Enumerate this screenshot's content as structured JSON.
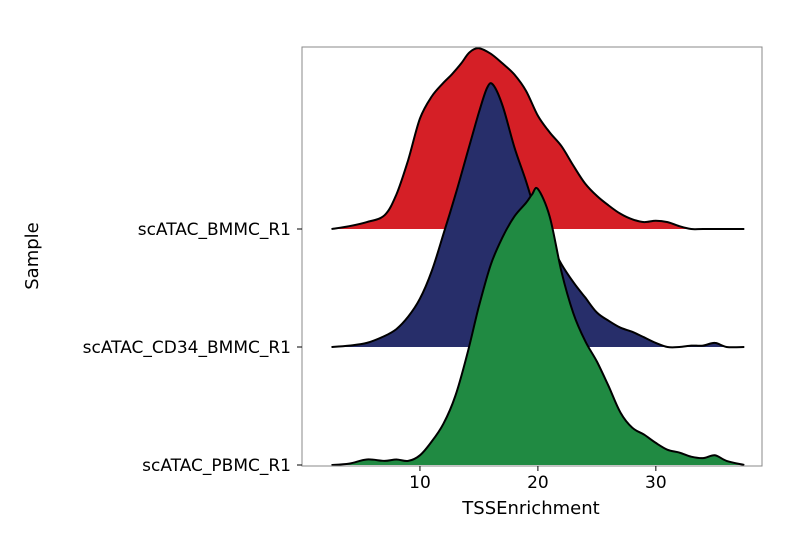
{
  "chart_data": {
    "type": "ridgeline",
    "title": "",
    "xlabel": "TSSEnrichment",
    "ylabel": "Sample",
    "xlim": [
      0,
      39
    ],
    "x_ticks": [
      10,
      20,
      30
    ],
    "grid": false,
    "legend": "none",
    "series": [
      {
        "name": "scATAC_BMMC_R1",
        "color": "#D51F26",
        "density": [
          [
            2.5,
            0.0
          ],
          [
            4,
            0.02
          ],
          [
            5.5,
            0.05
          ],
          [
            7,
            0.1
          ],
          [
            8,
            0.25
          ],
          [
            9,
            0.5
          ],
          [
            10,
            0.8
          ],
          [
            11,
            0.96
          ],
          [
            12,
            1.06
          ],
          [
            12.7,
            1.12
          ],
          [
            13.5,
            1.2
          ],
          [
            14.2,
            1.28
          ],
          [
            15,
            1.31
          ],
          [
            16,
            1.27
          ],
          [
            17,
            1.2
          ],
          [
            18,
            1.12
          ],
          [
            19,
            1.0
          ],
          [
            20,
            0.82
          ],
          [
            21,
            0.7
          ],
          [
            22,
            0.6
          ],
          [
            23,
            0.46
          ],
          [
            24,
            0.33
          ],
          [
            25,
            0.24
          ],
          [
            26,
            0.17
          ],
          [
            27,
            0.11
          ],
          [
            28,
            0.07
          ],
          [
            29,
            0.05
          ],
          [
            30,
            0.06
          ],
          [
            31,
            0.05
          ],
          [
            32,
            0.02
          ],
          [
            33,
            0.0
          ],
          [
            34,
            0.0
          ],
          [
            36,
            0.0
          ],
          [
            37.5,
            0.0
          ]
        ]
      },
      {
        "name": "scATAC_CD34_BMMC_R1",
        "color": "#272E6A",
        "density": [
          [
            2.5,
            0.0
          ],
          [
            4,
            0.01
          ],
          [
            5.5,
            0.03
          ],
          [
            7,
            0.08
          ],
          [
            8,
            0.13
          ],
          [
            9,
            0.22
          ],
          [
            10,
            0.35
          ],
          [
            11,
            0.55
          ],
          [
            12,
            0.82
          ],
          [
            13,
            1.1
          ],
          [
            14,
            1.4
          ],
          [
            15,
            1.7
          ],
          [
            15.7,
            1.88
          ],
          [
            16.2,
            1.9
          ],
          [
            17,
            1.75
          ],
          [
            18,
            1.45
          ],
          [
            19,
            1.2
          ],
          [
            20,
            0.93
          ],
          [
            21,
            0.76
          ],
          [
            22,
            0.6
          ],
          [
            23,
            0.47
          ],
          [
            24,
            0.36
          ],
          [
            25,
            0.25
          ],
          [
            26,
            0.19
          ],
          [
            27,
            0.14
          ],
          [
            28,
            0.11
          ],
          [
            29,
            0.07
          ],
          [
            30,
            0.03
          ],
          [
            31,
            0.0
          ],
          [
            32,
            0.0
          ],
          [
            33,
            0.01
          ],
          [
            34,
            0.01
          ],
          [
            35,
            0.03
          ],
          [
            36,
            0.0
          ],
          [
            37.5,
            0.0
          ]
        ]
      },
      {
        "name": "scATAC_PBMC_R1",
        "color": "#208A42",
        "density": [
          [
            2.5,
            0.0
          ],
          [
            4,
            0.01
          ],
          [
            5.5,
            0.04
          ],
          [
            7,
            0.03
          ],
          [
            8,
            0.04
          ],
          [
            9,
            0.03
          ],
          [
            10,
            0.07
          ],
          [
            11,
            0.17
          ],
          [
            12,
            0.3
          ],
          [
            13,
            0.5
          ],
          [
            14,
            0.8
          ],
          [
            15,
            1.15
          ],
          [
            16,
            1.45
          ],
          [
            17,
            1.65
          ],
          [
            18,
            1.8
          ],
          [
            19,
            1.9
          ],
          [
            19.5,
            1.96
          ],
          [
            20,
            2.0
          ],
          [
            21,
            1.8
          ],
          [
            22,
            1.4
          ],
          [
            23,
            1.1
          ],
          [
            24,
            0.9
          ],
          [
            25,
            0.75
          ],
          [
            26,
            0.57
          ],
          [
            27,
            0.38
          ],
          [
            28,
            0.27
          ],
          [
            29,
            0.22
          ],
          [
            30,
            0.16
          ],
          [
            31,
            0.11
          ],
          [
            32,
            0.09
          ],
          [
            33,
            0.06
          ],
          [
            34,
            0.05
          ],
          [
            35,
            0.07
          ],
          [
            36,
            0.03
          ],
          [
            37.5,
            0.0
          ]
        ]
      }
    ]
  }
}
